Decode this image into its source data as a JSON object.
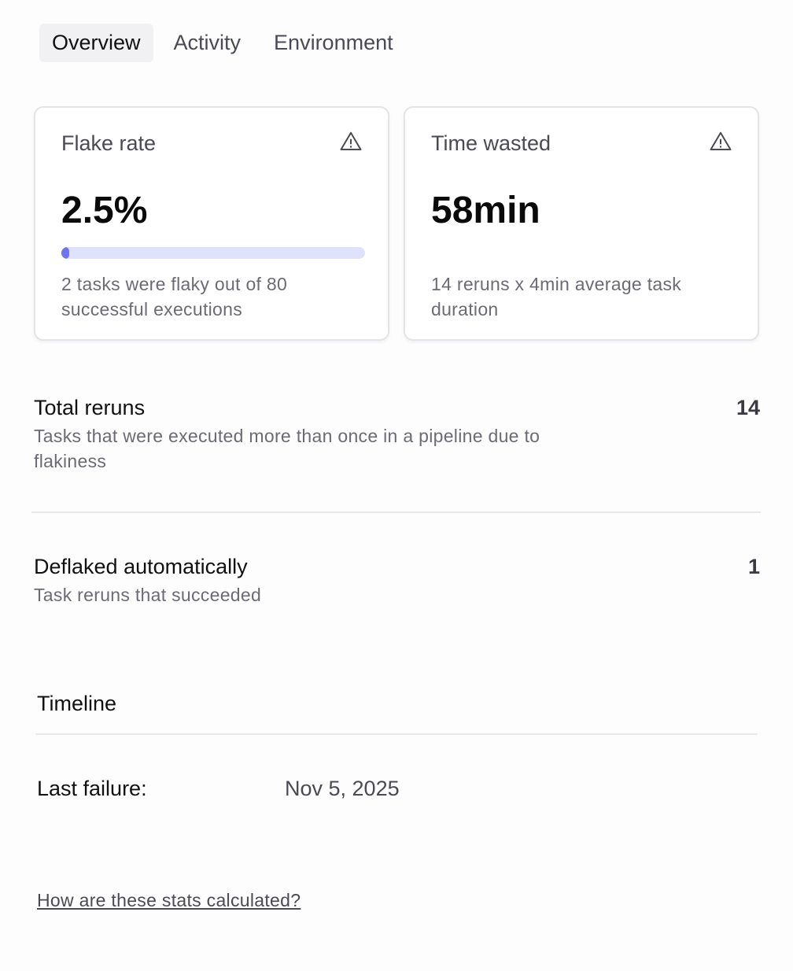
{
  "tabs": [
    {
      "label": "Overview",
      "active": true
    },
    {
      "label": "Activity"
    },
    {
      "label": "Environment"
    }
  ],
  "cards": [
    {
      "title": "Flake rate",
      "icon": "warning-icon",
      "value": "2.5%",
      "progress_percent": 2.5,
      "description": "2 tasks were flaky out of 80 successful executions"
    },
    {
      "title": "Time wasted",
      "icon": "warning-icon",
      "value": "58min",
      "description": "14 reruns x 4min average task duration"
    }
  ],
  "total_reruns": {
    "label": "Total reruns",
    "value": "14",
    "description": "Tasks that were executed more than once in a pipeline due to flakiness"
  },
  "deflaked": {
    "label": "Deflaked automatically",
    "value": "1",
    "description": "Task reruns that succeeded"
  },
  "timeline": {
    "heading": "Timeline",
    "last_failure_label": "Last failure:",
    "last_failure_value": "Nov 5, 2025"
  },
  "help_link": "How are these stats calculated?",
  "colors": {
    "progress_fill": "#6c74f0",
    "progress_track": "#e0e1fb"
  }
}
